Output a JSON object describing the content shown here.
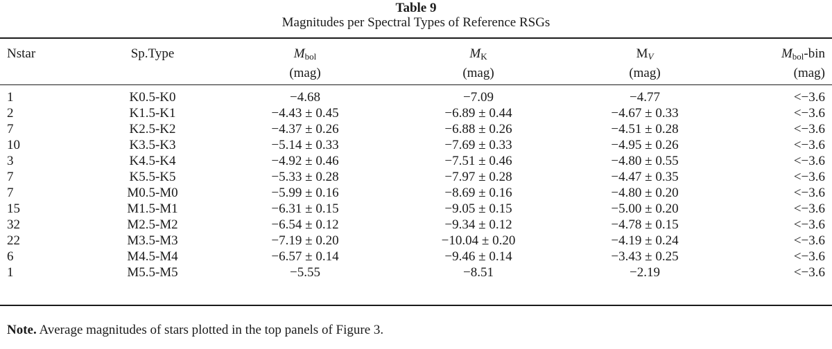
{
  "table": {
    "label": "Table 9",
    "title": "Magnitudes per Spectral Types of Reference RSGs",
    "headers": {
      "nstar": "Nstar",
      "sptype": "Sp.Type",
      "mbol": {
        "symbol": "M",
        "sub": "bol",
        "unit": "(mag)"
      },
      "mk": {
        "symbol": "M",
        "sub": "K",
        "unit": "(mag)"
      },
      "mv": {
        "symbol": "M",
        "sub": "V",
        "unit": "(mag)"
      },
      "mbolbin": {
        "symbol": "M",
        "sub": "bol",
        "suffix": "-bin",
        "unit": "(mag)"
      }
    },
    "rows": [
      {
        "nstar": "1",
        "sptype": "K0.5-K0",
        "mbol": "−4.68",
        "mk": "−7.09",
        "mv": "−4.77",
        "bin": "<−3.6"
      },
      {
        "nstar": "2",
        "sptype": "K1.5-K1",
        "mbol": "−4.43 ± 0.45",
        "mk": "−6.89 ± 0.44",
        "mv": "−4.67 ± 0.33",
        "bin": "<−3.6"
      },
      {
        "nstar": "7",
        "sptype": "K2.5-K2",
        "mbol": "−4.37 ± 0.26",
        "mk": "−6.88 ± 0.26",
        "mv": "−4.51 ± 0.28",
        "bin": "<−3.6"
      },
      {
        "nstar": "10",
        "sptype": "K3.5-K3",
        "mbol": "−5.14 ± 0.33",
        "mk": "−7.69 ± 0.33",
        "mv": "−4.95 ± 0.26",
        "bin": "<−3.6"
      },
      {
        "nstar": "3",
        "sptype": "K4.5-K4",
        "mbol": "−4.92 ± 0.46",
        "mk": "−7.51 ± 0.46",
        "mv": "−4.80 ± 0.55",
        "bin": "<−3.6"
      },
      {
        "nstar": "7",
        "sptype": "K5.5-K5",
        "mbol": "−5.33 ± 0.28",
        "mk": "−7.97 ± 0.28",
        "mv": "−4.47 ± 0.35",
        "bin": "<−3.6"
      },
      {
        "nstar": "7",
        "sptype": "M0.5-M0",
        "mbol": "−5.99 ± 0.16",
        "mk": "−8.69 ± 0.16",
        "mv": "−4.80 ± 0.20",
        "bin": "<−3.6"
      },
      {
        "nstar": "15",
        "sptype": "M1.5-M1",
        "mbol": "−6.31 ± 0.15",
        "mk": "−9.05 ± 0.15",
        "mv": "−5.00 ± 0.20",
        "bin": "<−3.6"
      },
      {
        "nstar": "32",
        "sptype": "M2.5-M2",
        "mbol": "−6.54 ± 0.12",
        "mk": "−9.34 ± 0.12",
        "mv": "−4.78 ± 0.15",
        "bin": "<−3.6"
      },
      {
        "nstar": "22",
        "sptype": "M3.5-M3",
        "mbol": "−7.19 ± 0.20",
        "mk": "−10.04 ± 0.20",
        "mv": "−4.19 ± 0.24",
        "bin": "<−3.6"
      },
      {
        "nstar": "6",
        "sptype": "M4.5-M4",
        "mbol": "−6.57 ± 0.14",
        "mk": "−9.46 ± 0.14",
        "mv": "−3.43 ± 0.25",
        "bin": "<−3.6"
      },
      {
        "nstar": "1",
        "sptype": "M5.5-M5",
        "mbol": "−5.55",
        "mk": "−8.51",
        "mv": "−2.19",
        "bin": "<−3.6"
      }
    ],
    "note": {
      "label": "Note.",
      "text": "Average magnitudes of stars plotted in the top panels of Figure 3."
    }
  }
}
